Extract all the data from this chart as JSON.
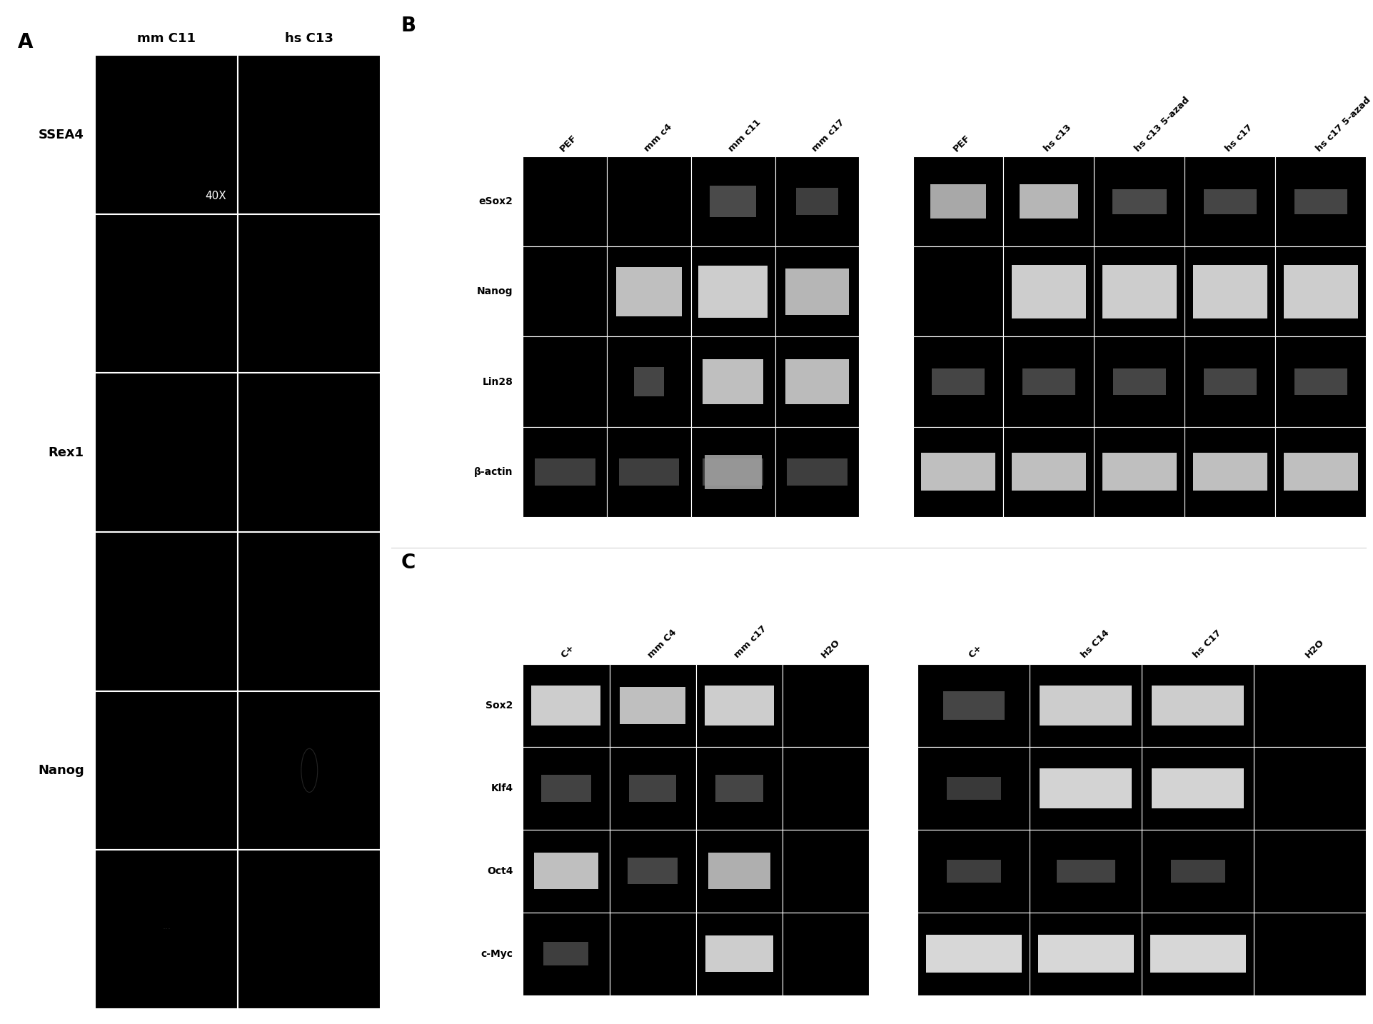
{
  "panel_A": {
    "label": "A",
    "columns": [
      "mm C11",
      "hs C13"
    ],
    "row_labels_map": {
      "0": "SSEA4",
      "2": "Rex1",
      "4": "Nanog"
    },
    "magnification": "40X",
    "num_rows": 6,
    "num_cols": 2
  },
  "panel_B": {
    "label": "B",
    "left_columns": [
      "PEF",
      "mm c4",
      "mm c11",
      "mm c17"
    ],
    "right_columns": [
      "PEF",
      "hs c13",
      "hs c13 5-azad",
      "hs c17",
      "hs c17 5-azad"
    ],
    "row_labels": [
      "eSox2",
      "Nanog",
      "Lin28",
      "β-actin"
    ]
  },
  "panel_C": {
    "label": "C",
    "left_columns": [
      "C+",
      "mm C4",
      "mm c17",
      "H2O"
    ],
    "right_columns": [
      "C+",
      "hs C14",
      "hs C17",
      "H2O"
    ],
    "row_labels": [
      "Sox2",
      "Klf4",
      "Oct4",
      "c-Myc"
    ]
  },
  "fig_width": 19.23,
  "fig_height": 14.34,
  "dpi": 100
}
